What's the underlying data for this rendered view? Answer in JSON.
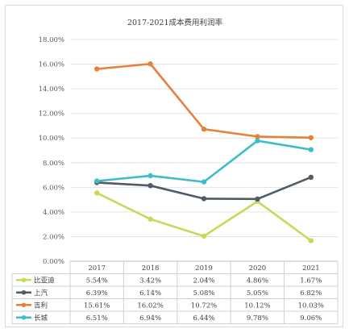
{
  "chart_data": {
    "type": "line",
    "title": "2017-2021成本费用利润率",
    "categories": [
      "2017",
      "2018",
      "2019",
      "2020",
      "2021"
    ],
    "ylim": [
      0,
      18
    ],
    "y_ticks": [
      "0.00%",
      "2.00%",
      "4.00%",
      "6.00%",
      "8.00%",
      "10.00%",
      "12.00%",
      "14.00%",
      "16.00%",
      "18.00%"
    ],
    "grid": true,
    "legend": "data-table-bottom",
    "series": [
      {
        "name": "比亚迪",
        "color": "#c5da5a",
        "values": [
          5.54,
          3.42,
          2.04,
          4.86,
          1.67
        ],
        "labels": [
          "5.54%",
          "3.42%",
          "2.04%",
          "4.86%",
          "1.67%"
        ]
      },
      {
        "name": "上汽",
        "color": "#4f5b66",
        "values": [
          6.39,
          6.14,
          5.08,
          5.05,
          6.82
        ],
        "labels": [
          "6.39%",
          "6.14%",
          "5.08%",
          "5.05%",
          "6.82%"
        ]
      },
      {
        "name": "吉利",
        "color": "#e8803a",
        "values": [
          15.61,
          16.02,
          10.72,
          10.12,
          10.03
        ],
        "labels": [
          "15.61%",
          "16.02%",
          "10.72%",
          "10.12%",
          "10.03%"
        ]
      },
      {
        "name": "长城",
        "color": "#3fbcc8",
        "values": [
          6.51,
          6.94,
          6.44,
          9.78,
          9.06
        ],
        "labels": [
          "6.51%",
          "6.94%",
          "6.44%",
          "9.78%",
          "9.06%"
        ]
      }
    ]
  }
}
